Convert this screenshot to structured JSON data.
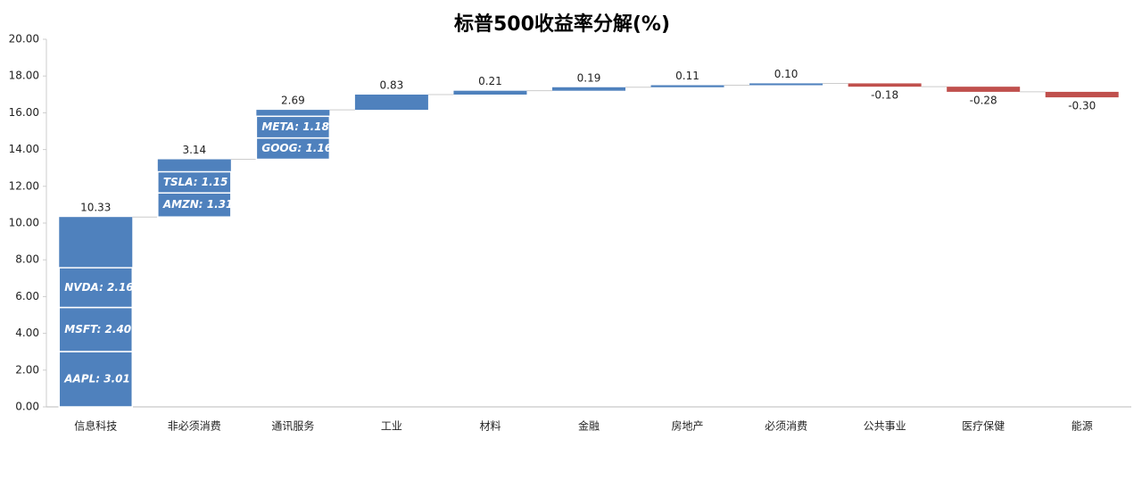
{
  "chart_data": {
    "type": "waterfall",
    "title": "标普500收益率分解(%)",
    "categories": [
      "信息科技",
      "非必须消费",
      "通讯服务",
      "工业",
      "材料",
      "金融",
      "房地产",
      "必须消费",
      "公共事业",
      "医疗保健",
      "能源"
    ],
    "values": [
      10.33,
      3.14,
      2.69,
      0.83,
      0.21,
      0.19,
      0.11,
      0.1,
      -0.18,
      -0.28,
      -0.3
    ],
    "value_labels": [
      "10.33",
      "3.14",
      "2.69",
      "0.83",
      "0.21",
      "0.19",
      "0.11",
      "0.10",
      "-0.18",
      "-0.28",
      "-0.30"
    ],
    "breakdown": [
      [
        {
          "label": "AAPL: 3.01",
          "value": 3.01
        },
        {
          "label": "MSFT: 2.40",
          "value": 2.4
        },
        {
          "label": "NVDA: 2.16",
          "value": 2.16
        }
      ],
      [
        {
          "label": "AMZN: 1.31",
          "value": 1.31
        },
        {
          "label": "TSLA: 1.15",
          "value": 1.15
        }
      ],
      [
        {
          "label": "GOOG: 1.16",
          "value": 1.16
        },
        {
          "label": "META: 1.18",
          "value": 1.18
        }
      ],
      null,
      null,
      null,
      null,
      null,
      null,
      null,
      null
    ],
    "positive_color": "#4f81bd",
    "negative_color": "#c0504d",
    "ylim": [
      0,
      20
    ],
    "yticks": [
      {
        "value": 0,
        "label": "0.00"
      },
      {
        "value": 2,
        "label": "2.00"
      },
      {
        "value": 4,
        "label": "4.00"
      },
      {
        "value": 6,
        "label": "6.00"
      },
      {
        "value": 8,
        "label": "8.00"
      },
      {
        "value": 10,
        "label": "10.00"
      },
      {
        "value": 12,
        "label": "12.00"
      },
      {
        "value": 14,
        "label": "14.00"
      },
      {
        "value": 16,
        "label": "16.00"
      },
      {
        "value": 18,
        "label": "18.00"
      },
      {
        "value": 20,
        "label": "20.00"
      }
    ],
    "grid": false
  }
}
